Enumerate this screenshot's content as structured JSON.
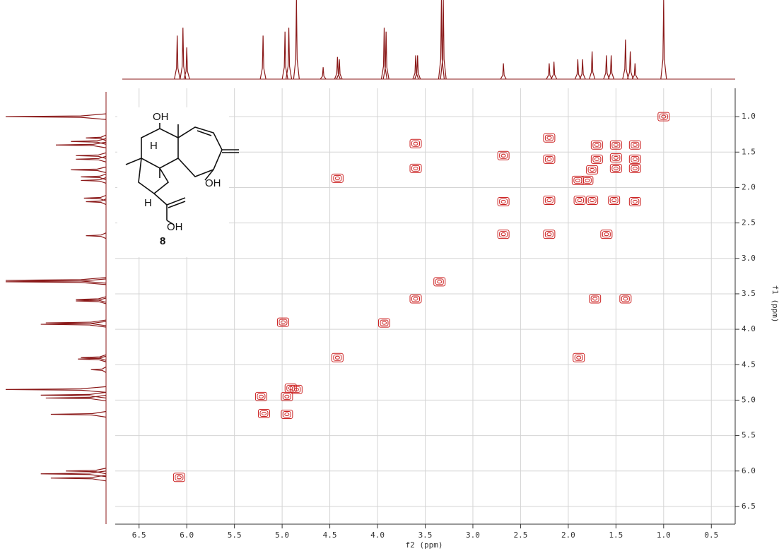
{
  "chart_data": {
    "type": "scatter",
    "x_label": "f2 (ppm)",
    "y_label": "f1 (ppm)",
    "xlim": [
      6.75,
      0.25
    ],
    "ylim": [
      6.75,
      0.6
    ],
    "xticks": [
      6.5,
      {
        "value": 6,
        "label": "6.0"
      },
      5.5,
      {
        "value": 5,
        "label": "5.0"
      },
      4.5,
      {
        "value": 4,
        "label": "4.0"
      },
      3.5,
      {
        "value": 3,
        "label": "3.0"
      },
      2.5,
      {
        "value": 2,
        "label": "2.0"
      },
      1.5,
      {
        "value": 1,
        "label": "1.0"
      },
      0.5
    ],
    "yticks": [
      {
        "value": 1,
        "label": "1.0"
      },
      1.5,
      {
        "value": 2,
        "label": "2.0"
      },
      2.5,
      {
        "value": 3,
        "label": "3.0"
      },
      3.5,
      {
        "value": 4,
        "label": "4.0"
      },
      4.5,
      {
        "value": 5,
        "label": "5.0"
      },
      5.5,
      {
        "value": 6,
        "label": "6.0"
      },
      6.5
    ],
    "grid": true,
    "color": "#cc2222",
    "x": [
      1.0,
      3.6,
      3.6,
      4.42,
      2.68,
      2.68,
      2.68,
      2.2,
      2.2,
      2.2,
      2.2,
      1.9,
      1.88,
      1.75,
      1.52,
      1.3,
      1.6,
      1.7,
      1.5,
      1.3,
      1.5,
      1.3,
      1.7,
      1.75,
      1.5,
      1.3,
      1.8,
      3.35,
      3.6,
      1.72,
      1.4,
      3.93,
      4.99,
      4.42,
      1.89,
      4.91,
      4.95,
      4.85,
      5.22,
      5.19,
      4.95,
      6.08
    ],
    "y": [
      1.0,
      1.38,
      1.73,
      1.87,
      1.55,
      2.2,
      2.66,
      1.3,
      1.6,
      2.18,
      2.66,
      1.9,
      2.18,
      2.18,
      2.18,
      2.2,
      2.66,
      1.4,
      1.4,
      1.4,
      1.58,
      1.6,
      1.6,
      1.75,
      1.73,
      1.73,
      1.9,
      3.33,
      3.57,
      3.57,
      3.57,
      3.91,
      3.9,
      4.4,
      4.4,
      4.83,
      4.95,
      4.85,
      4.95,
      5.19,
      5.2,
      6.09
    ],
    "projection": {
      "color": "#8b1a1a",
      "ppm": [
        6.1,
        6.04,
        6.0,
        5.2,
        4.97,
        4.93,
        4.85,
        4.57,
        4.42,
        4.4,
        3.93,
        3.91,
        3.6,
        3.58,
        3.33,
        3.31,
        2.68,
        2.2,
        2.15,
        1.9,
        1.85,
        1.75,
        1.6,
        1.55,
        1.4,
        1.35,
        1.3,
        1.0
      ],
      "height": [
        0.55,
        0.65,
        0.4,
        0.55,
        0.6,
        0.65,
        1.0,
        0.15,
        0.28,
        0.25,
        0.65,
        0.6,
        0.3,
        0.3,
        1.0,
        1.0,
        0.2,
        0.2,
        0.22,
        0.25,
        0.25,
        0.35,
        0.3,
        0.3,
        0.5,
        0.35,
        0.2,
        1.0
      ]
    }
  },
  "structure": {
    "labels": [
      "OH",
      "H",
      "OH",
      "H",
      "OH"
    ],
    "compound": "8"
  }
}
